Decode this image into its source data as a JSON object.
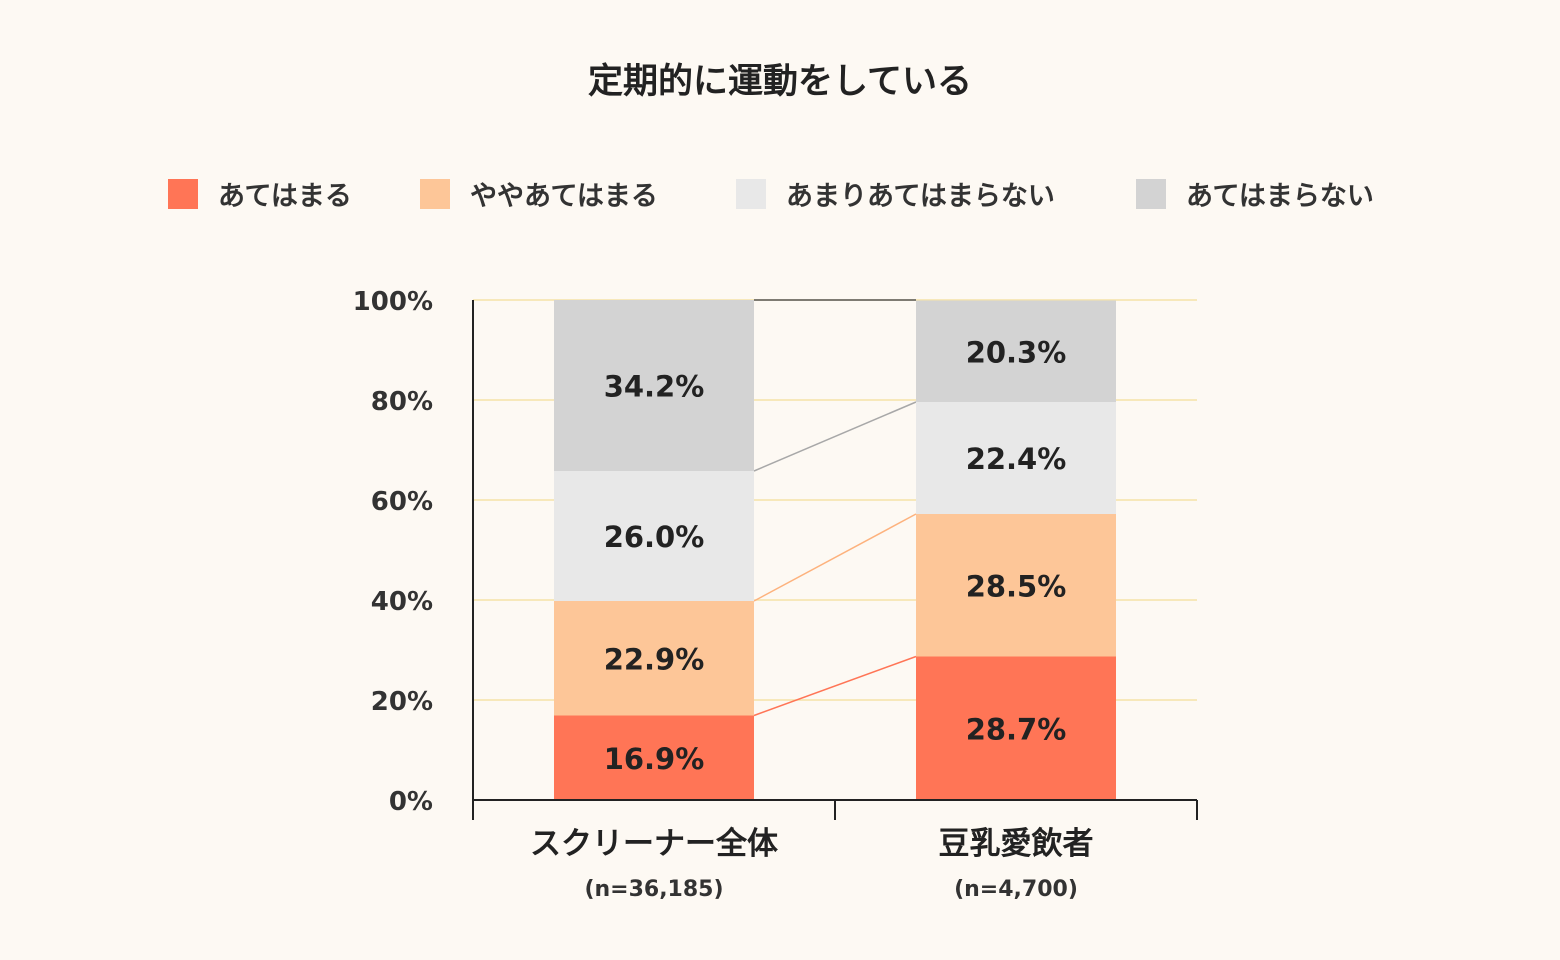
{
  "chart_data": {
    "type": "bar",
    "stacked": true,
    "title": "定期的に運動をしている",
    "categories": [
      {
        "label": "スクリーナー全体",
        "sublabel": "(n=36,185)"
      },
      {
        "label": "豆乳愛飲者",
        "sublabel": "(n=4,700)"
      }
    ],
    "series": [
      {
        "name": "あてはまる",
        "color": "#ff7556",
        "values": [
          16.9,
          28.7
        ],
        "labels": [
          "16.9%",
          "28.7%"
        ]
      },
      {
        "name": "ややあてはまる",
        "color": "#fdc698",
        "values": [
          22.9,
          28.5
        ],
        "labels": [
          "22.9%",
          "28.5%"
        ]
      },
      {
        "name": "あまりあてはまらない",
        "color": "#e8e8e8",
        "values": [
          26.0,
          22.4
        ],
        "labels": [
          "26.0%",
          "22.4%"
        ]
      },
      {
        "name": "あてはまらない",
        "color": "#d3d3d3",
        "values": [
          34.2,
          20.3
        ],
        "labels": [
          "34.2%",
          "20.3%"
        ]
      }
    ],
    "yticks": [
      "0%",
      "20%",
      "40%",
      "60%",
      "80%",
      "100%"
    ],
    "ylim": [
      0,
      100
    ],
    "grid": true,
    "legend_position": "top",
    "connector_colors": [
      "#ff7556",
      "#fdb27d",
      "#a8a8a8"
    ]
  }
}
